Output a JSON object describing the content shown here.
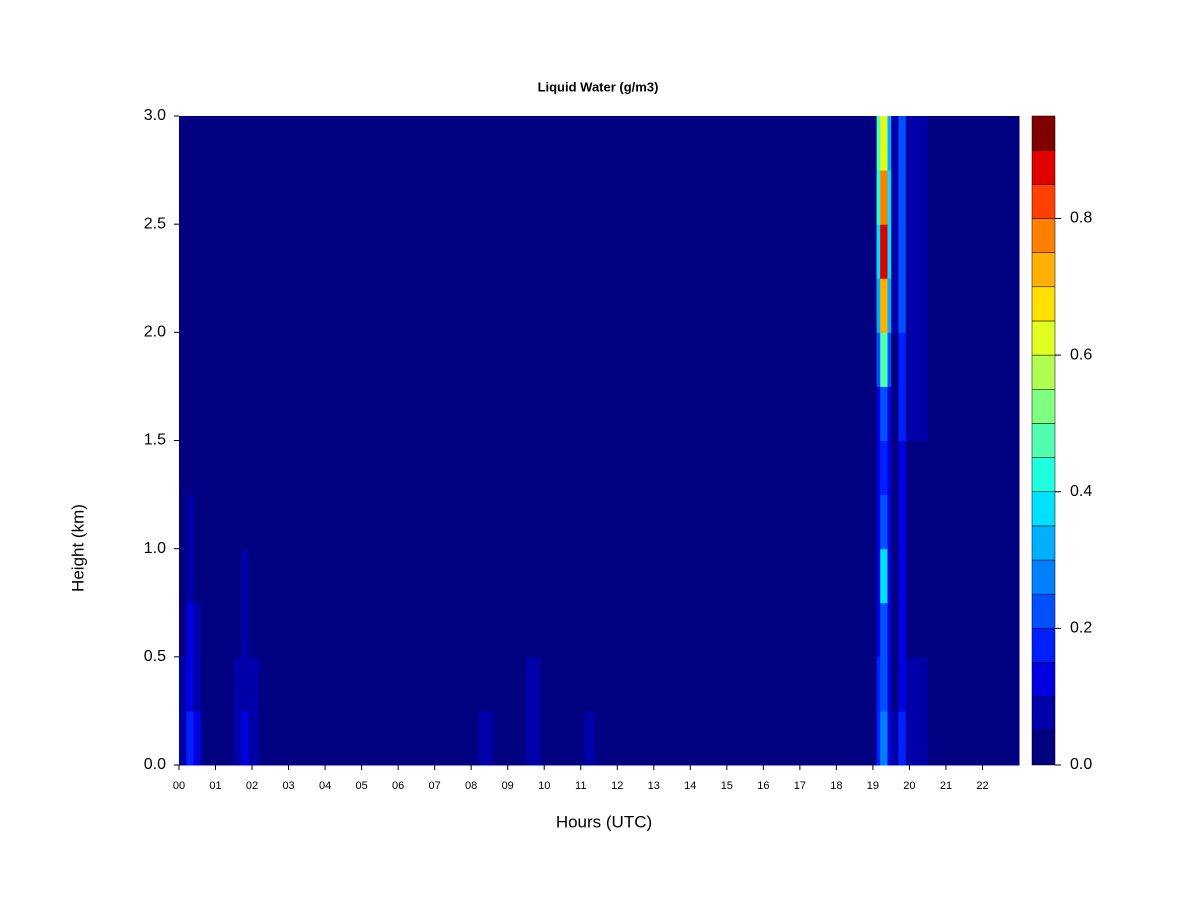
{
  "chart_data": {
    "type": "heatmap",
    "title": "Liquid Water (g/m3)",
    "xlabel": "Hours (UTC)",
    "ylabel": "Height (km)",
    "xbins": [
      0,
      0.2,
      0.4,
      0.6,
      1.5,
      1.7,
      1.9,
      2.2,
      8.2,
      8.6,
      9.5,
      9.9,
      11.1,
      11.4,
      19.1,
      19.2,
      19.4,
      19.5,
      19.7,
      19.9,
      20.5,
      21.5,
      23
    ],
    "ybins": [
      0,
      0.25,
      0.5,
      0.75,
      1.0,
      1.25,
      1.5,
      1.75,
      2.0,
      2.25,
      2.5,
      2.75,
      3.0
    ],
    "values": [
      [
        0.06,
        0.15,
        0.1,
        0.03,
        0.06,
        0.12,
        0.06,
        0.02,
        0.06,
        0.02,
        0.08,
        0.02,
        0.05,
        0.02,
        0.15,
        0.25,
        0.1,
        0.05,
        0.15,
        0.05,
        0.03,
        0.02
      ],
      [
        0.05,
        0.12,
        0.08,
        0.03,
        0.05,
        0.08,
        0.05,
        0.02,
        0.02,
        0.02,
        0.05,
        0.02,
        0.04,
        0.02,
        0.15,
        0.22,
        0.1,
        0.04,
        0.12,
        0.05,
        0.03,
        0.02
      ],
      [
        0.04,
        0.1,
        0.06,
        0.02,
        0.04,
        0.06,
        0.03,
        0.02,
        0.02,
        0.02,
        0.02,
        0.02,
        0.02,
        0.02,
        0.14,
        0.2,
        0.1,
        0.04,
        0.12,
        0.04,
        0.03,
        0.02
      ],
      [
        0.03,
        0.08,
        0.04,
        0.02,
        0.03,
        0.05,
        0.02,
        0.02,
        0.02,
        0.02,
        0.02,
        0.02,
        0.02,
        0.02,
        0.14,
        0.35,
        0.12,
        0.04,
        0.12,
        0.04,
        0.02,
        0.02
      ],
      [
        0.03,
        0.05,
        0.03,
        0.02,
        0.02,
        0.02,
        0.02,
        0.02,
        0.02,
        0.02,
        0.02,
        0.02,
        0.02,
        0.02,
        0.13,
        0.2,
        0.1,
        0.03,
        0.12,
        0.04,
        0.02,
        0.02
      ],
      [
        0.02,
        0.03,
        0.02,
        0.02,
        0.02,
        0.02,
        0.02,
        0.02,
        0.02,
        0.02,
        0.02,
        0.02,
        0.02,
        0.02,
        0.13,
        0.18,
        0.1,
        0.03,
        0.12,
        0.04,
        0.02,
        0.02
      ],
      [
        0.02,
        0.02,
        0.02,
        0.02,
        0.02,
        0.02,
        0.02,
        0.02,
        0.02,
        0.02,
        0.02,
        0.02,
        0.02,
        0.02,
        0.14,
        0.2,
        0.1,
        0.03,
        0.15,
        0.05,
        0.02,
        0.02
      ],
      [
        0.02,
        0.02,
        0.02,
        0.02,
        0.02,
        0.02,
        0.02,
        0.02,
        0.02,
        0.02,
        0.02,
        0.02,
        0.02,
        0.02,
        0.2,
        0.45,
        0.2,
        0.04,
        0.18,
        0.06,
        0.02,
        0.02
      ],
      [
        0.02,
        0.02,
        0.02,
        0.02,
        0.02,
        0.02,
        0.02,
        0.02,
        0.02,
        0.02,
        0.02,
        0.02,
        0.02,
        0.02,
        0.3,
        0.7,
        0.3,
        0.05,
        0.2,
        0.07,
        0.02,
        0.02
      ],
      [
        0.02,
        0.02,
        0.02,
        0.02,
        0.02,
        0.02,
        0.02,
        0.02,
        0.02,
        0.02,
        0.02,
        0.02,
        0.02,
        0.02,
        0.35,
        0.85,
        0.35,
        0.05,
        0.2,
        0.08,
        0.02,
        0.02
      ],
      [
        0.02,
        0.02,
        0.02,
        0.02,
        0.02,
        0.02,
        0.02,
        0.02,
        0.02,
        0.02,
        0.02,
        0.02,
        0.02,
        0.02,
        0.4,
        0.75,
        0.35,
        0.05,
        0.2,
        0.08,
        0.04,
        0.02
      ],
      [
        0.02,
        0.02,
        0.02,
        0.02,
        0.02,
        0.02,
        0.02,
        0.02,
        0.02,
        0.02,
        0.02,
        0.02,
        0.02,
        0.02,
        0.45,
        0.6,
        0.3,
        0.05,
        0.22,
        0.08,
        0.04,
        0.02
      ]
    ],
    "xlim": [
      0,
      23
    ],
    "xticks": [
      {
        "value": 0,
        "label": "00"
      },
      {
        "value": 1,
        "label": "01"
      },
      {
        "value": 2,
        "label": "02"
      },
      {
        "value": 3,
        "label": "03"
      },
      {
        "value": 4,
        "label": "04"
      },
      {
        "value": 5,
        "label": "05"
      },
      {
        "value": 6,
        "label": "06"
      },
      {
        "value": 7,
        "label": "07"
      },
      {
        "value": 8,
        "label": "08"
      },
      {
        "value": 9,
        "label": "09"
      },
      10,
      11,
      12,
      13,
      14,
      15,
      16,
      17,
      18,
      19,
      20,
      21,
      22
    ],
    "ylim": [
      0,
      3
    ],
    "yticks": [
      {
        "value": 0,
        "label": "0.0"
      },
      0.5,
      {
        "value": 1,
        "label": "1.0"
      },
      1.5,
      {
        "value": 2,
        "label": "2.0"
      },
      2.5,
      {
        "value": 3,
        "label": "3.0"
      }
    ],
    "clim": [
      0,
      0.95
    ],
    "cticks": [
      {
        "value": 0,
        "label": "0.0"
      },
      0.2,
      0.4,
      0.6,
      0.8
    ],
    "colors": [
      "#000080",
      "#0000A8",
      "#0000E0",
      "#0020FF",
      "#0050FF",
      "#0080FF",
      "#00B0FF",
      "#00E0FF",
      "#20FFE0",
      "#50FFB0",
      "#80FF80",
      "#B0FF50",
      "#E0FF20",
      "#FFE000",
      "#FFB000",
      "#FF8000",
      "#FF4000",
      "#E00000",
      "#800000"
    ]
  }
}
